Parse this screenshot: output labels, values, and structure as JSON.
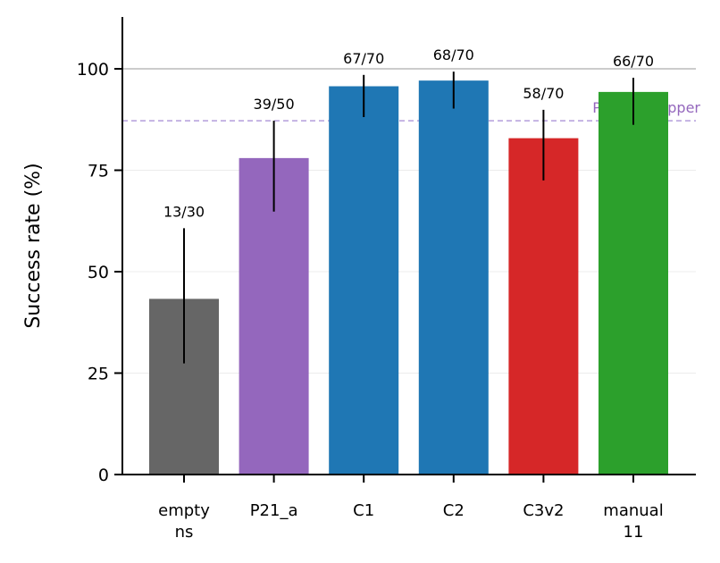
{
  "chart_data": {
    "type": "bar",
    "ylabel": "Success rate (%)",
    "ylim": [
      0,
      100
    ],
    "yticks": [
      0,
      25,
      50,
      75,
      100
    ],
    "grid": "horizontal, light",
    "categories": [
      {
        "lines": [
          "empty",
          "ns"
        ]
      },
      {
        "lines": [
          "P21_a"
        ]
      },
      {
        "lines": [
          "C1"
        ]
      },
      {
        "lines": [
          "C2"
        ]
      },
      {
        "lines": [
          "C3v2"
        ]
      },
      {
        "lines": [
          "manual",
          "11"
        ]
      }
    ],
    "bars": [
      {
        "value": 43.3,
        "ci_low": 27.4,
        "ci_high": 60.7,
        "label": "13/30",
        "color": "#666666"
      },
      {
        "value": 78.0,
        "ci_low": 64.8,
        "ci_high": 87.2,
        "label": "39/50",
        "color": "#9467bd"
      },
      {
        "value": 95.7,
        "ci_low": 88.1,
        "ci_high": 98.5,
        "label": "67/70",
        "color": "#1f77b4"
      },
      {
        "value": 97.1,
        "ci_low": 90.2,
        "ci_high": 99.3,
        "label": "68/70",
        "color": "#1f77b4"
      },
      {
        "value": 82.9,
        "ci_low": 72.5,
        "ci_high": 89.9,
        "label": "58/70",
        "color": "#d62728"
      },
      {
        "value": 94.3,
        "ci_low": 86.2,
        "ci_high": 97.8,
        "label": "66/70",
        "color": "#2ca02c"
      }
    ],
    "reference_lines": [
      {
        "value": 100,
        "style": "solid",
        "color": "#999999",
        "label": ""
      },
      {
        "value": 87.2,
        "style": "dashed",
        "color": "#b39ddb",
        "label": "P21_a CI upper",
        "label_color": "#9467bd"
      }
    ]
  }
}
